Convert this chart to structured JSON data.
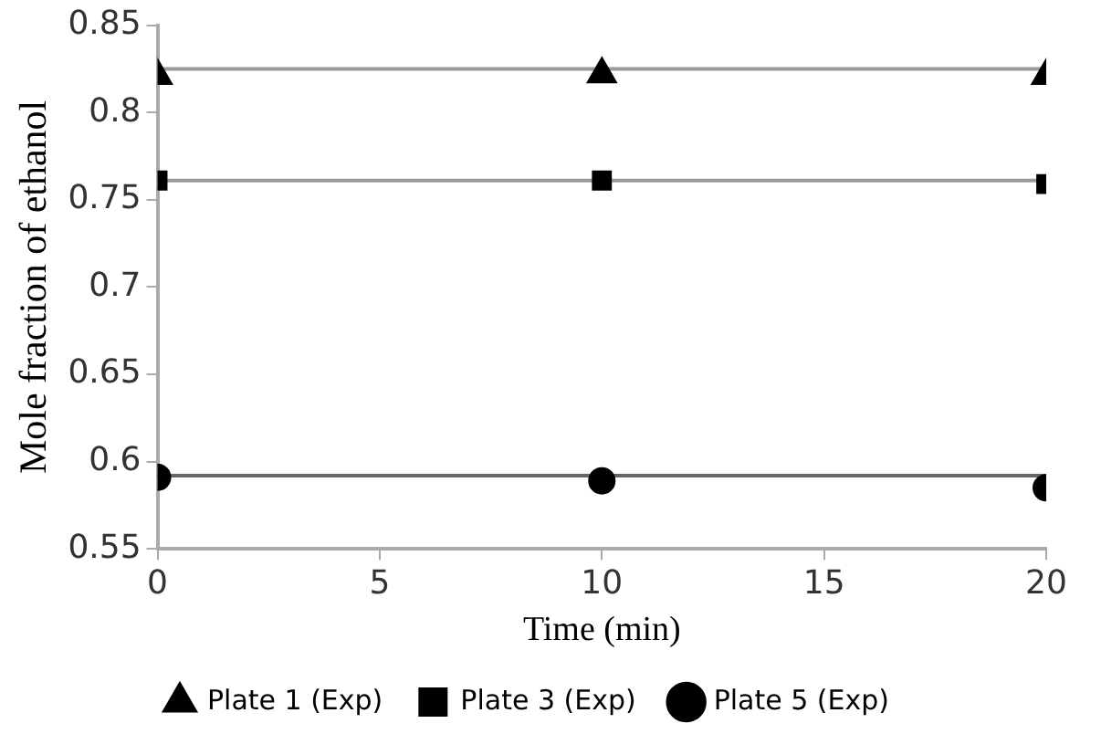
{
  "chart_data": {
    "type": "scatter",
    "xlabel": "Time (min)",
    "ylabel": "Mole fraction of ethanol",
    "x": [
      0,
      10,
      20
    ],
    "series": [
      {
        "name": "Plate 1 (Exp)",
        "color": "#000000",
        "marker": "triangle",
        "values": [
          0.821,
          0.822,
          0.821
        ]
      },
      {
        "name": "Plate 3 (Exp)",
        "color": "#000000",
        "marker": "square",
        "values": [
          0.761,
          0.761,
          0.759
        ]
      },
      {
        "name": "Plate 5 (Exp)",
        "color": "#000000",
        "marker": "circle",
        "values": [
          0.591,
          0.589,
          0.585
        ]
      }
    ],
    "ref_lines": [
      {
        "axis": "y",
        "value": 0.825,
        "color": "#999999"
      },
      {
        "axis": "y",
        "value": 0.761,
        "color": "#999999"
      },
      {
        "axis": "y",
        "value": 0.592,
        "color": "#666666"
      }
    ],
    "xlim": [
      0,
      20
    ],
    "xticks": [
      0,
      5,
      10,
      15,
      20
    ],
    "ylim": [
      0.55,
      0.85
    ],
    "yticks": [
      0.55,
      0.6,
      0.65,
      0.7,
      0.75,
      0.8,
      0.85
    ],
    "grid": false,
    "legend": "bottom"
  }
}
